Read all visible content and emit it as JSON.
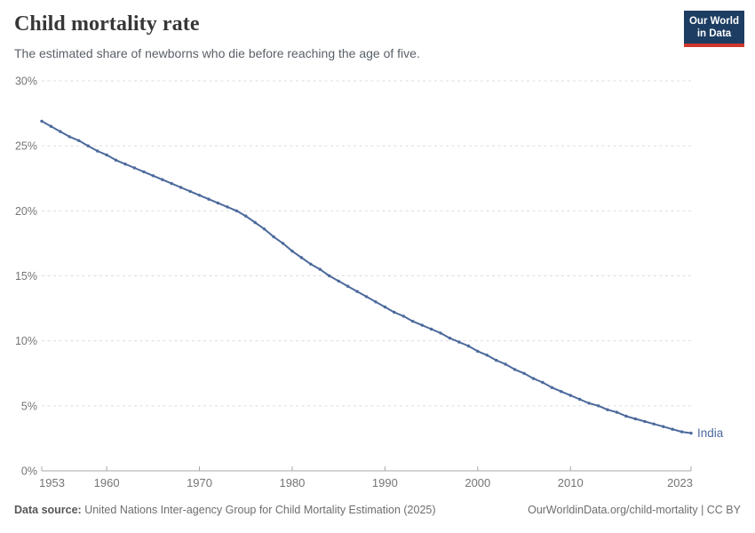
{
  "header": {
    "title": "Child mortality rate",
    "subtitle": "The estimated share of newborns who die before reaching the age of five."
  },
  "logo": {
    "line1": "Our World",
    "line2": "in Data"
  },
  "chart_data": {
    "type": "line",
    "title": "Child mortality rate",
    "x": [
      1953,
      1954,
      1955,
      1956,
      1957,
      1958,
      1959,
      1960,
      1961,
      1962,
      1963,
      1964,
      1965,
      1966,
      1967,
      1968,
      1969,
      1970,
      1971,
      1972,
      1973,
      1974,
      1975,
      1976,
      1977,
      1978,
      1979,
      1980,
      1981,
      1982,
      1983,
      1984,
      1985,
      1986,
      1987,
      1988,
      1989,
      1990,
      1991,
      1992,
      1993,
      1994,
      1995,
      1996,
      1997,
      1998,
      1999,
      2000,
      2001,
      2002,
      2003,
      2004,
      2005,
      2006,
      2007,
      2008,
      2009,
      2010,
      2011,
      2012,
      2013,
      2014,
      2015,
      2016,
      2017,
      2018,
      2019,
      2020,
      2021,
      2022,
      2023
    ],
    "series": [
      {
        "name": "India",
        "values": [
          26.9,
          26.5,
          26.1,
          25.7,
          25.4,
          25.0,
          24.6,
          24.3,
          23.9,
          23.6,
          23.3,
          23.0,
          22.7,
          22.4,
          22.1,
          21.8,
          21.5,
          21.2,
          20.9,
          20.6,
          20.3,
          20.0,
          19.6,
          19.1,
          18.6,
          18.0,
          17.5,
          16.9,
          16.4,
          15.9,
          15.5,
          15.0,
          14.6,
          14.2,
          13.8,
          13.4,
          13.0,
          12.6,
          12.2,
          11.9,
          11.5,
          11.2,
          10.9,
          10.6,
          10.2,
          9.9,
          9.6,
          9.2,
          8.9,
          8.5,
          8.2,
          7.8,
          7.5,
          7.1,
          6.8,
          6.4,
          6.1,
          5.8,
          5.5,
          5.2,
          5.0,
          4.7,
          4.5,
          4.2,
          4.0,
          3.8,
          3.6,
          3.4,
          3.2,
          3.0,
          2.9
        ]
      }
    ],
    "xlabel": "",
    "ylabel": "",
    "ylim": [
      0,
      30
    ],
    "yticks": [
      0,
      5,
      10,
      15,
      20,
      25,
      30
    ],
    "ytick_suffix": "%",
    "xticks": [
      1953,
      1960,
      1970,
      1980,
      1990,
      2000,
      2010,
      2023
    ],
    "grid": "horizontal-dashed",
    "legend": "end-of-line-label",
    "colors": {
      "line": "#4c6a9c",
      "grid": "#dcdcdc",
      "axis": "#a8a8a8",
      "tick_label": "#757575"
    }
  },
  "footer": {
    "source_label": "Data source:",
    "source_text": " United Nations Inter-agency Group for Child Mortality Estimation (2025)",
    "link_text": "OurWorldinData.org/child-mortality | CC BY"
  }
}
